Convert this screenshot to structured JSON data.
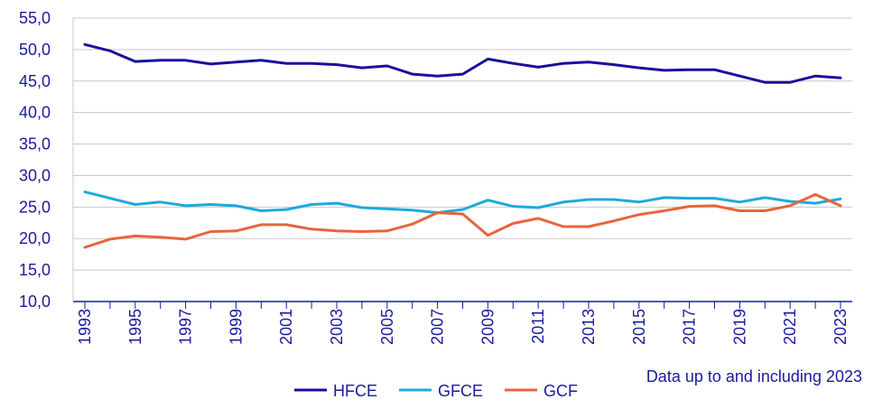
{
  "chart_data": {
    "type": "line",
    "x": [
      1993,
      1994,
      1995,
      1996,
      1997,
      1998,
      1999,
      2000,
      2001,
      2002,
      2003,
      2004,
      2005,
      2006,
      2007,
      2008,
      2009,
      2010,
      2011,
      2012,
      2013,
      2014,
      2015,
      2016,
      2017,
      2018,
      2019,
      2020,
      2021,
      2022,
      2023
    ],
    "x_tick_labels": [
      "1993",
      "1995",
      "1997",
      "1999",
      "2001",
      "2003",
      "2005",
      "2007",
      "2009",
      "2011",
      "2013",
      "2015",
      "2017",
      "2019",
      "2021",
      "2023"
    ],
    "ylim": [
      10,
      55
    ],
    "y_tick_labels": [
      "10,0",
      "15,0",
      "20,0",
      "25,0",
      "30,0",
      "35,0",
      "40,0",
      "45,0",
      "50,0",
      "55,0"
    ],
    "grid": true,
    "legend_position": "bottom",
    "note": "Data up to and including 2023",
    "series": [
      {
        "name": "HFCE",
        "color": "#1a0f9e",
        "values": [
          50.8,
          49.8,
          48.1,
          48.3,
          48.3,
          47.7,
          48.0,
          48.3,
          47.8,
          47.8,
          47.6,
          47.1,
          47.4,
          46.1,
          45.8,
          46.1,
          48.5,
          47.8,
          47.2,
          47.8,
          48.0,
          47.6,
          47.1,
          46.7,
          46.8,
          46.8,
          45.8,
          44.8,
          44.8,
          45.8,
          45.5
        ]
      },
      {
        "name": "GFCE",
        "color": "#1ea9dc",
        "values": [
          27.4,
          26.4,
          25.4,
          25.8,
          25.2,
          25.4,
          25.2,
          24.4,
          24.6,
          25.4,
          25.6,
          24.9,
          24.7,
          24.5,
          24.1,
          24.6,
          26.1,
          25.1,
          24.9,
          25.8,
          26.2,
          26.2,
          25.8,
          26.5,
          26.4,
          26.4,
          25.8,
          26.5,
          25.9,
          25.6,
          26.3
        ]
      },
      {
        "name": "GCF",
        "color": "#e8643c",
        "values": [
          18.6,
          19.9,
          20.4,
          20.2,
          19.9,
          21.1,
          21.2,
          22.2,
          22.2,
          21.5,
          21.2,
          21.1,
          21.2,
          22.3,
          24.1,
          23.9,
          20.5,
          22.4,
          23.2,
          21.9,
          21.9,
          22.8,
          23.8,
          24.4,
          25.1,
          25.2,
          24.4,
          24.4,
          25.2,
          27.0,
          25.2
        ]
      }
    ]
  }
}
